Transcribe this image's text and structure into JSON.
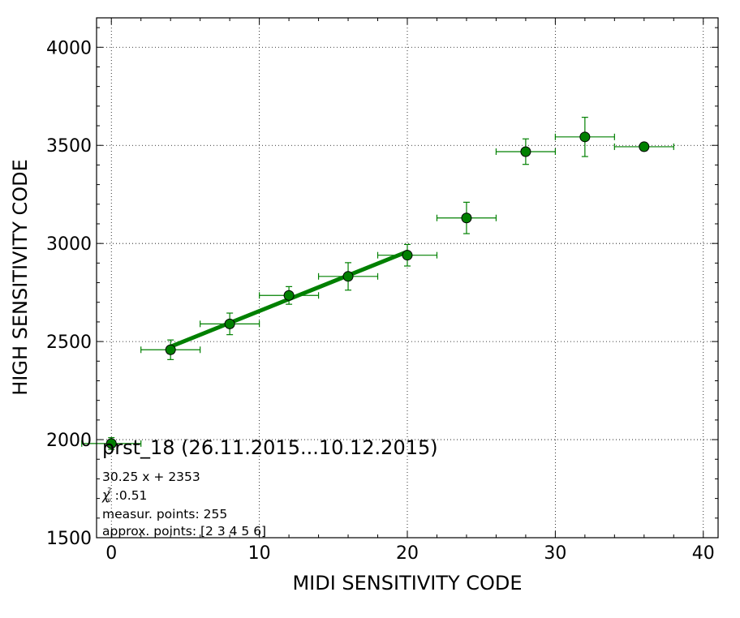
{
  "chart_data": {
    "type": "scatter",
    "title": "prst_18 (26.11.2015...10.12.2015)",
    "xlabel": "MIDI SENSITIVITY CODE",
    "ylabel": "HIGH SENSITIVITY CODE",
    "xlim": [
      -1,
      41
    ],
    "ylim": [
      1500,
      4150
    ],
    "xticks": [
      0,
      10,
      20,
      30,
      40
    ],
    "yticks": [
      1500,
      2000,
      2500,
      3000,
      3500,
      4000
    ],
    "grid": true,
    "series": [
      {
        "color": "#008000",
        "points": [
          {
            "x": 0,
            "y": 1980,
            "xerr": 2,
            "yerr": 30
          },
          {
            "x": 4,
            "y": 2458,
            "xerr": 2,
            "yerr": 50
          },
          {
            "x": 8,
            "y": 2590,
            "xerr": 2,
            "yerr": 55
          },
          {
            "x": 12,
            "y": 2735,
            "xerr": 2,
            "yerr": 45
          },
          {
            "x": 16,
            "y": 2832,
            "xerr": 2,
            "yerr": 70
          },
          {
            "x": 20,
            "y": 2940,
            "xerr": 2,
            "yerr": 55
          },
          {
            "x": 24,
            "y": 3130,
            "xerr": 2,
            "yerr": 80
          },
          {
            "x": 28,
            "y": 3468,
            "xerr": 2,
            "yerr": 65
          },
          {
            "x": 32,
            "y": 3543,
            "xerr": 2,
            "yerr": 100
          },
          {
            "x": 36,
            "y": 3493,
            "xerr": 2,
            "yerr": 20
          }
        ]
      }
    ],
    "fit": {
      "color": "#008000",
      "slope": 30.25,
      "intercept": 2353,
      "x_range": [
        4,
        20
      ]
    },
    "annotations": {
      "equation": "30.25 x + 2353",
      "chi2_symbol": "χ",
      "chi2_sup": "2",
      "chi2_sub": "ν",
      "chi2_value": " :0.51",
      "measur_points": "measur. points: 255",
      "approx_points": "approx. points: [2 3 4 5 6]"
    }
  }
}
